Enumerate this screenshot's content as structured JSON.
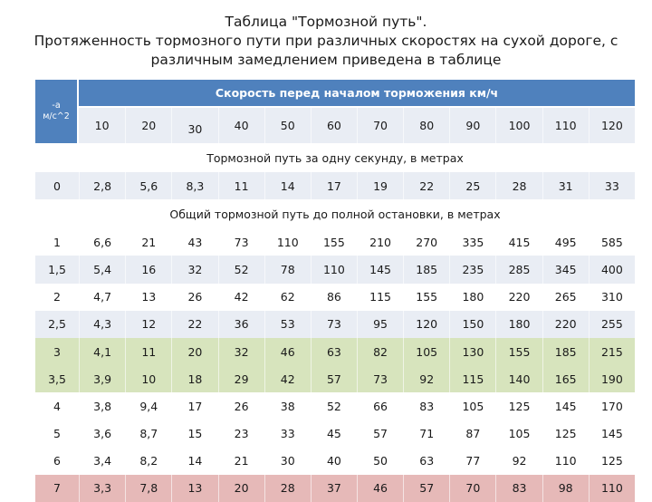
{
  "title": {
    "line1": "Таблица \"Тормозной путь\".",
    "line2": "Протяженность тормозного пути при различных скоростях на сухой дороге, с",
    "line3": "различным замедлением приведена в таблице"
  },
  "table": {
    "accel_header_1": "-a",
    "accel_header_2": "м/с^2",
    "speed_header": "Скорость перед началом торможения км/ч",
    "speeds": [
      "10",
      "20",
      "30",
      "40",
      "50",
      "60",
      "70",
      "80",
      "90",
      "100",
      "110",
      "120"
    ],
    "section1": "Тормозной путь за одну секунду, в метрах",
    "row_one_second": [
      "0",
      "2,8",
      "5,6",
      "8,3",
      "11",
      "14",
      "17",
      "19",
      "22",
      "25",
      "28",
      "31",
      "33"
    ],
    "section2": "Общий тормозной путь до полной остановки, в метрах",
    "rows": [
      [
        "1",
        "6,6",
        "21",
        "43",
        "73",
        "110",
        "155",
        "210",
        "270",
        "335",
        "415",
        "495",
        "585"
      ],
      [
        "1,5",
        "5,4",
        "16",
        "32",
        "52",
        "78",
        "110",
        "145",
        "185",
        "235",
        "285",
        "345",
        "400"
      ],
      [
        "2",
        "4,7",
        "13",
        "26",
        "42",
        "62",
        "86",
        "115",
        "155",
        "180",
        "220",
        "265",
        "310"
      ],
      [
        "2,5",
        "4,3",
        "12",
        "22",
        "36",
        "53",
        "73",
        "95",
        "120",
        "150",
        "180",
        "220",
        "255"
      ],
      [
        "3",
        "4,1",
        "11",
        "20",
        "32",
        "46",
        "63",
        "82",
        "105",
        "130",
        "155",
        "185",
        "215"
      ],
      [
        "3,5",
        "3,9",
        "10",
        "18",
        "29",
        "42",
        "57",
        "73",
        "92",
        "115",
        "140",
        "165",
        "190"
      ],
      [
        "4",
        "3,8",
        "9,4",
        "17",
        "26",
        "38",
        "52",
        "66",
        "83",
        "105",
        "125",
        "145",
        "170"
      ],
      [
        "5",
        "3,6",
        "8,7",
        "15",
        "23",
        "33",
        "45",
        "57",
        "71",
        "87",
        "105",
        "125",
        "145"
      ],
      [
        "6",
        "3,4",
        "8,2",
        "14",
        "21",
        "30",
        "40",
        "50",
        "63",
        "77",
        "92",
        "110",
        "125"
      ],
      [
        "7",
        "3,3",
        "7,8",
        "13",
        "20",
        "28",
        "37",
        "46",
        "57",
        "70",
        "83",
        "98",
        "110"
      ]
    ],
    "row_styles": [
      "white",
      "light",
      "white",
      "light",
      "green",
      "green",
      "white",
      "white",
      "white",
      "red"
    ]
  },
  "colors": {
    "header": "#4f81bd",
    "band": "#e9edf4",
    "green_highlight": "#d7e4bd",
    "red_highlight": "#e6b9b8"
  }
}
